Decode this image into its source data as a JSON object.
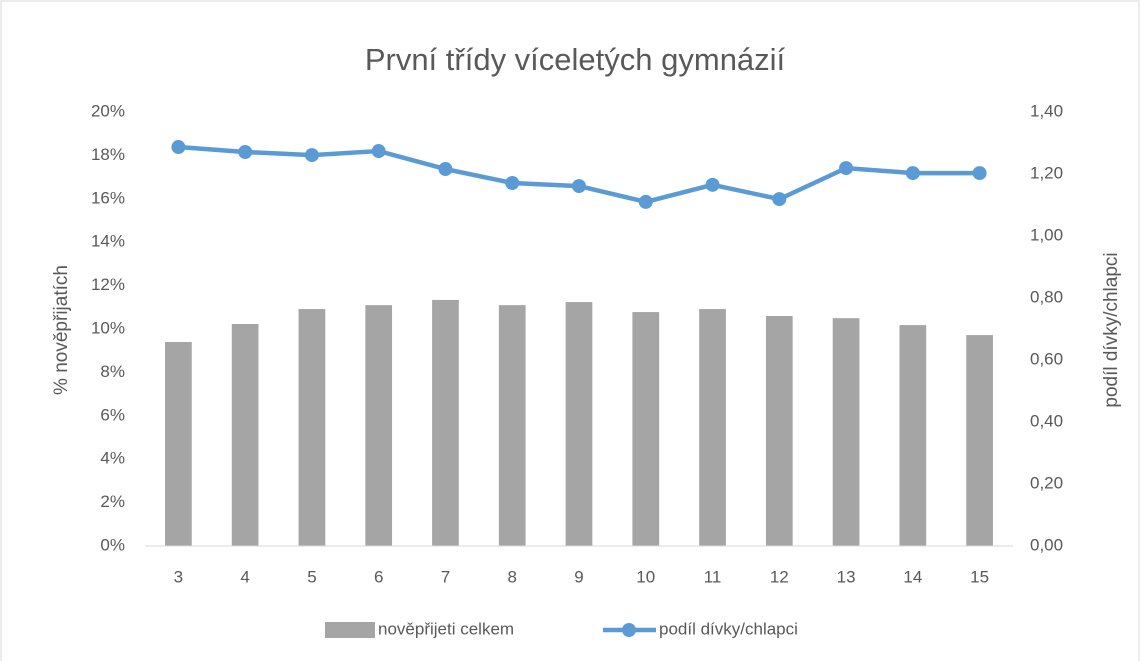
{
  "chart_data": {
    "type": "bar-line",
    "title": "První třídy víceletých gymnázií",
    "ylabel": "% nověpřijatích",
    "y2label": "podíl dívky/chlapci",
    "categories": [
      "3",
      "4",
      "5",
      "6",
      "7",
      "8",
      "9",
      "10",
      "11",
      "12",
      "13",
      "14",
      "15"
    ],
    "series": [
      {
        "name": "nověpřijeti celkem",
        "type": "bar",
        "color": "#a5a5a5",
        "axis": "y",
        "values": [
          9.4,
          10.23,
          10.92,
          11.1,
          11.34,
          11.1,
          11.24,
          10.78,
          10.92,
          10.6,
          10.5,
          10.18,
          9.72
        ]
      },
      {
        "name": "podíl dívky/chlapci",
        "type": "line",
        "color": "#5b9bd5",
        "axis": "y2",
        "values": [
          1.287,
          1.271,
          1.261,
          1.274,
          1.216,
          1.171,
          1.161,
          1.11,
          1.165,
          1.119,
          1.219,
          1.203,
          1.203
        ]
      }
    ],
    "ylim": [
      0,
      20
    ],
    "yticks": [
      {
        "value": 0,
        "label": "0%"
      },
      {
        "value": 2,
        "label": "2%"
      },
      {
        "value": 4,
        "label": "4%"
      },
      {
        "value": 6,
        "label": "6%"
      },
      {
        "value": 8,
        "label": "8%"
      },
      {
        "value": 10,
        "label": "10%"
      },
      {
        "value": 12,
        "label": "12%"
      },
      {
        "value": 14,
        "label": "14%"
      },
      {
        "value": 16,
        "label": "16%"
      },
      {
        "value": 18,
        "label": "18%"
      },
      {
        "value": 20,
        "label": "20%"
      }
    ],
    "y2lim": [
      0,
      1.4
    ],
    "y2ticks": [
      {
        "value": 0,
        "label": "0,00"
      },
      {
        "value": 0.2,
        "label": "0,20"
      },
      {
        "value": 0.4,
        "label": "0,40"
      },
      {
        "value": 0.6,
        "label": "0,60"
      },
      {
        "value": 0.8,
        "label": "0,80"
      },
      {
        "value": 1.0,
        "label": "1,00"
      },
      {
        "value": 1.2,
        "label": "1,20"
      },
      {
        "value": 1.4,
        "label": "1,40"
      }
    ],
    "grid": false,
    "legend": "bottom"
  }
}
